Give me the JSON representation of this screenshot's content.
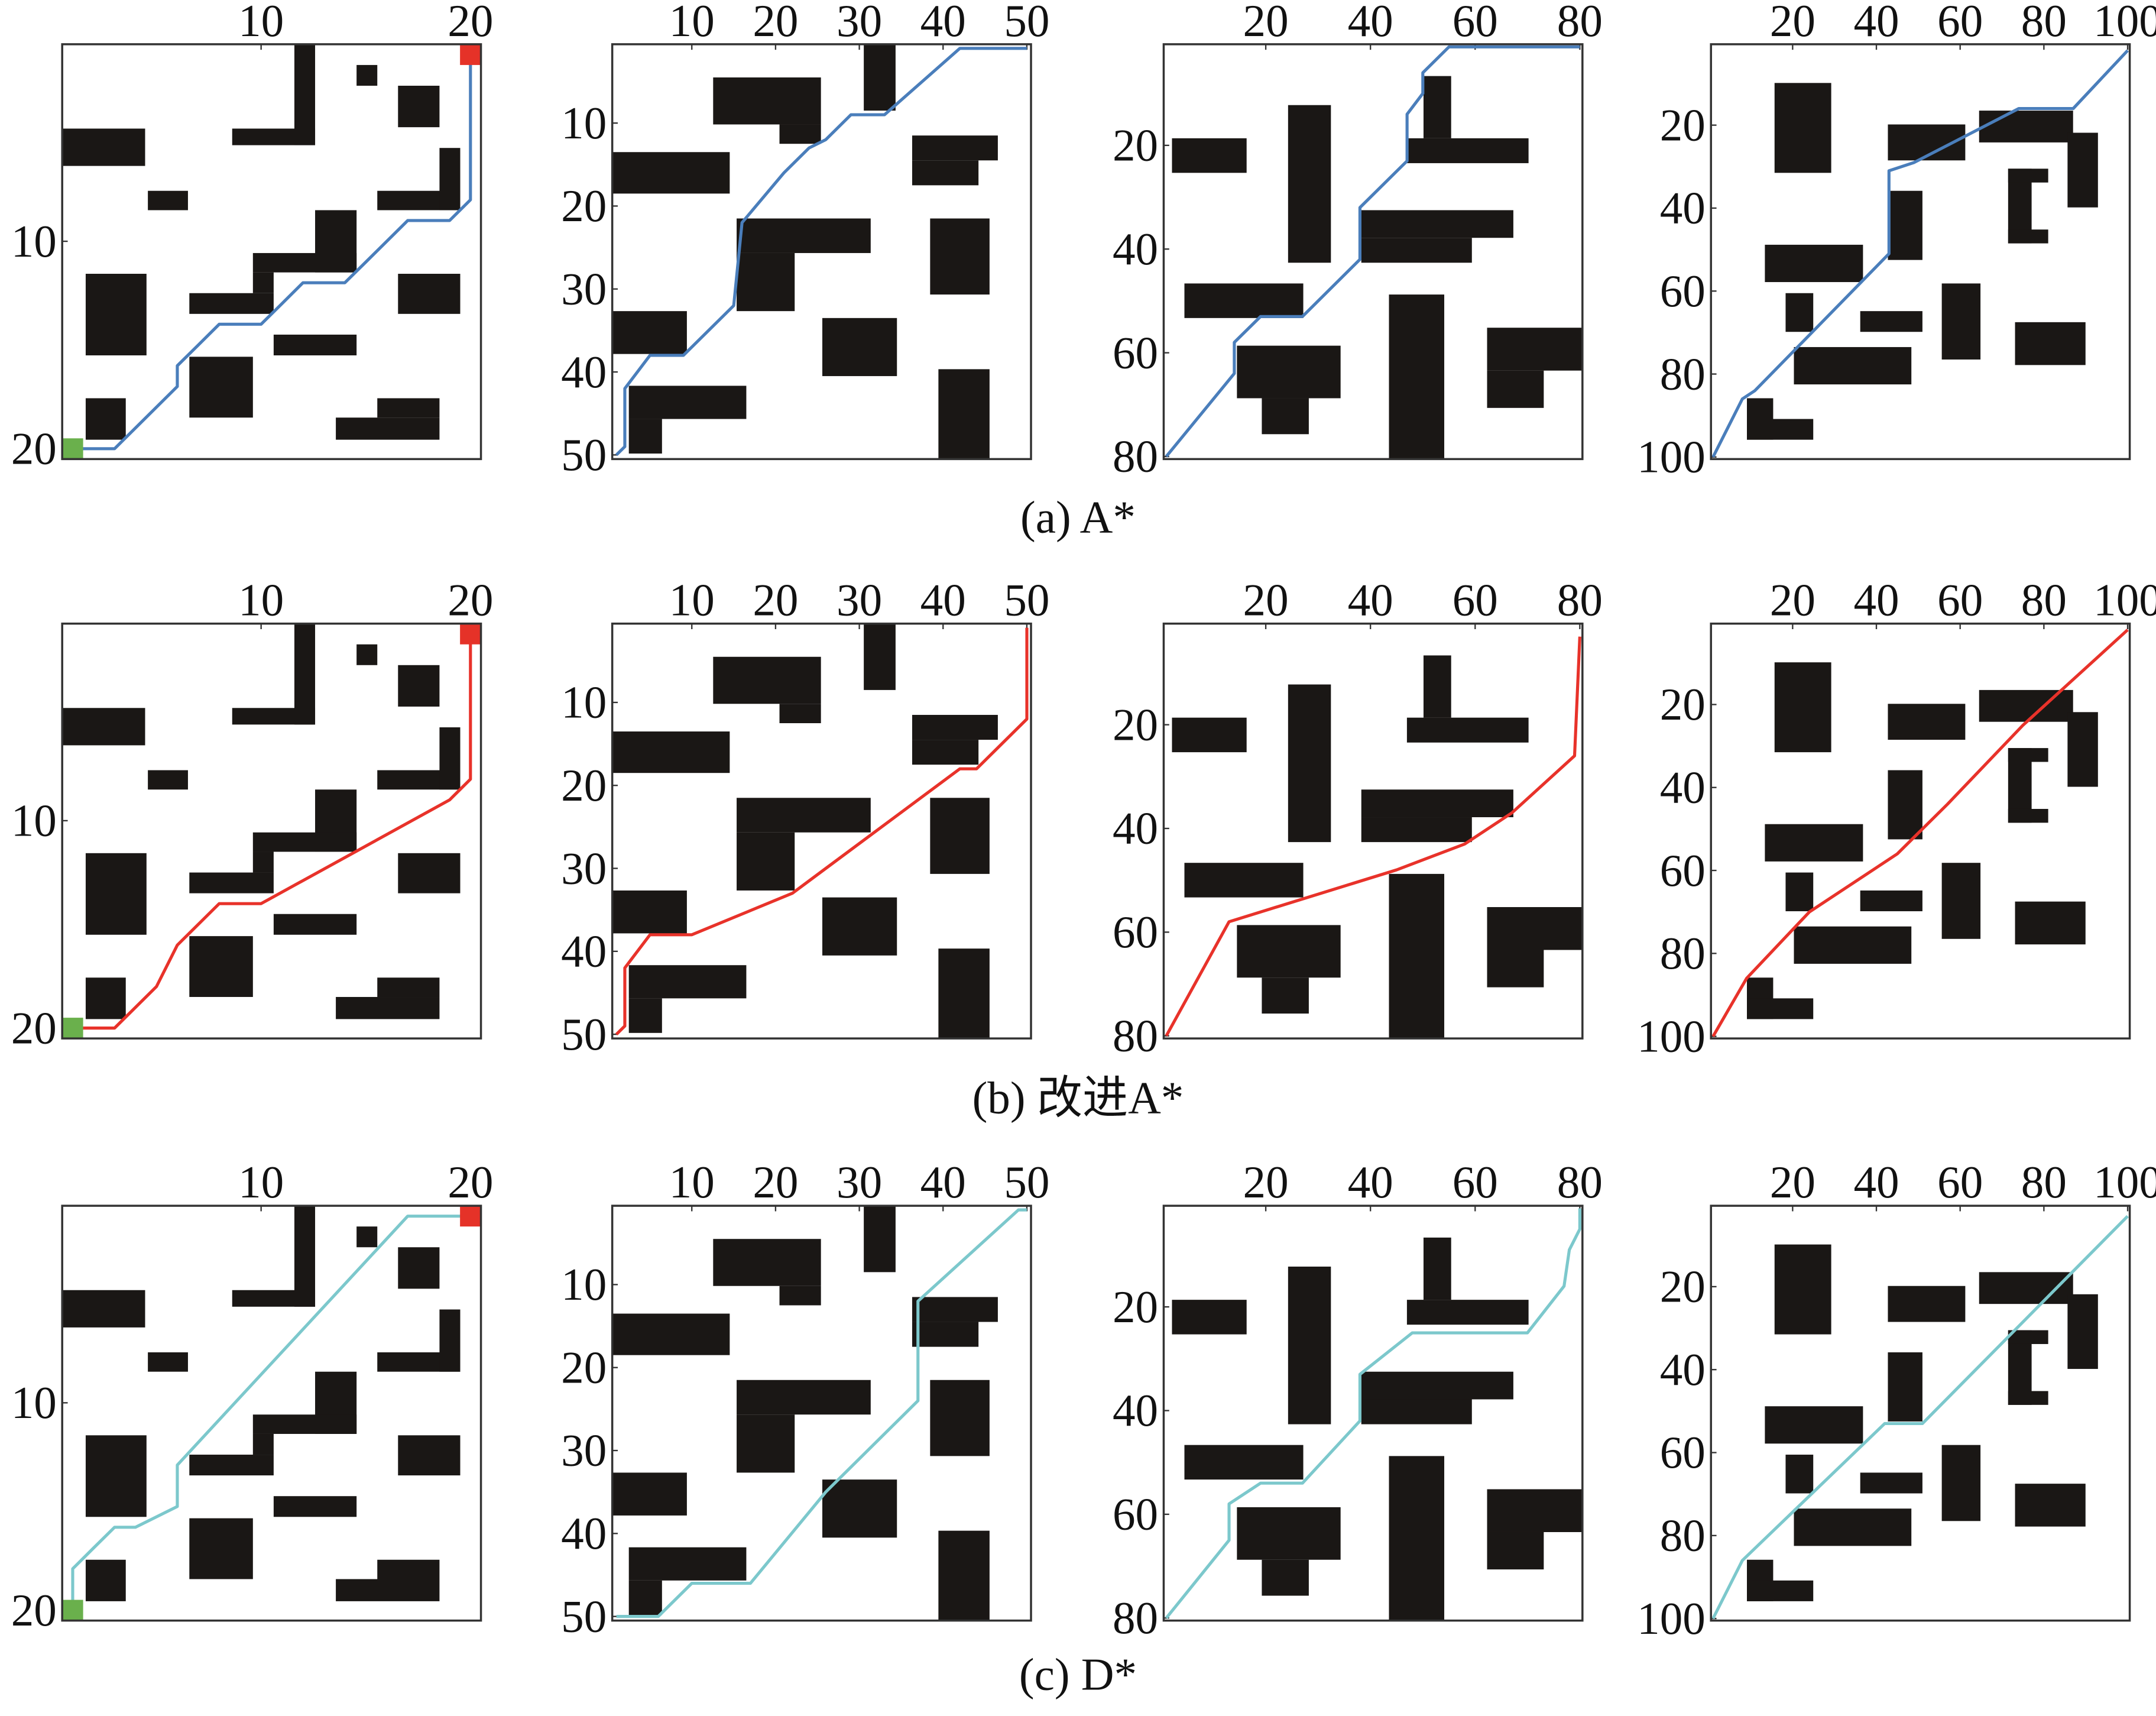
{
  "captions": [
    "(a) A*",
    "(b) 改进A*",
    "(c) D*"
  ],
  "chart_data": [
    {
      "type": "line",
      "xlim": [
        0.5,
        20.5
      ],
      "ylim": [
        0.5,
        20.5
      ],
      "y_inverted": true,
      "xticks": [
        10,
        20
      ],
      "yticks": [
        10,
        20
      ],
      "color": "#4a7ebb",
      "endpoint_markers": true,
      "start_color": "#6ab04c",
      "goal_color": "#e53228",
      "x": [
        1,
        3,
        6,
        6,
        7,
        8,
        10,
        11,
        12,
        14,
        15,
        17,
        19,
        20,
        20
      ],
      "values": [
        20,
        20,
        17,
        16,
        15,
        14,
        14,
        13,
        12,
        12,
        11,
        9,
        9,
        8,
        1
      ]
    },
    {
      "type": "line",
      "xlim": [
        0.5,
        50.5
      ],
      "ylim": [
        0.5,
        50.5
      ],
      "y_inverted": true,
      "xticks": [
        10,
        20,
        30,
        40,
        50
      ],
      "yticks": [
        10,
        20,
        30,
        40,
        50
      ],
      "color": "#4a7ebb",
      "x": [
        1,
        2,
        2,
        5,
        9,
        15,
        16,
        21,
        24,
        26,
        29,
        33,
        42,
        50,
        50
      ],
      "values": [
        50,
        49,
        42,
        38,
        38,
        32,
        22,
        16,
        13,
        12,
        9,
        9,
        1,
        1,
        1
      ]
    },
    {
      "type": "line",
      "xlim": [
        0.5,
        80.5
      ],
      "ylim": [
        0.5,
        80.5
      ],
      "y_inverted": true,
      "xticks": [
        20,
        40,
        60,
        80
      ],
      "yticks": [
        20,
        40,
        60,
        80
      ],
      "color": "#4a7ebb",
      "x": [
        1,
        14,
        14,
        19,
        27,
        38,
        38,
        47,
        47,
        50,
        50,
        55,
        80
      ],
      "values": [
        80,
        64,
        58,
        53,
        53,
        42,
        32,
        23,
        14,
        10,
        6,
        1,
        1
      ]
    },
    {
      "type": "line",
      "xlim": [
        0.5,
        100.5
      ],
      "ylim": [
        0.5,
        100.5
      ],
      "y_inverted": true,
      "xticks": [
        20,
        40,
        60,
        80,
        100
      ],
      "yticks": [
        20,
        40,
        60,
        80,
        100
      ],
      "color": "#4a7ebb",
      "x": [
        1,
        8,
        11,
        43,
        43,
        49,
        74,
        87,
        100
      ],
      "values": [
        100,
        86,
        84,
        51,
        31,
        29,
        16,
        16,
        2
      ]
    },
    {
      "type": "line",
      "xlim": [
        0.5,
        20.5
      ],
      "ylim": [
        0.5,
        20.5
      ],
      "y_inverted": true,
      "xticks": [
        10,
        20
      ],
      "yticks": [
        10,
        20
      ],
      "color": "#e8322a",
      "endpoint_markers": true,
      "start_color": "#6ab04c",
      "goal_color": "#e53228",
      "x": [
        1,
        3,
        5,
        6,
        8,
        10,
        19,
        20,
        20
      ],
      "values": [
        20,
        20,
        18,
        16,
        14,
        14,
        9,
        8,
        1
      ]
    },
    {
      "type": "line",
      "xlim": [
        0.5,
        50.5
      ],
      "ylim": [
        0.5,
        50.5
      ],
      "y_inverted": true,
      "xticks": [
        10,
        20,
        30,
        40,
        50
      ],
      "yticks": [
        10,
        20,
        30,
        40,
        50
      ],
      "color": "#e8322a",
      "x": [
        1,
        2,
        2,
        5,
        10,
        22,
        42,
        44,
        50,
        50
      ],
      "values": [
        50,
        49,
        42,
        38,
        38,
        33,
        18,
        18,
        12,
        1
      ]
    },
    {
      "type": "line",
      "xlim": [
        0.5,
        80.5
      ],
      "ylim": [
        0.5,
        80.5
      ],
      "y_inverted": true,
      "xticks": [
        20,
        40,
        60,
        80
      ],
      "yticks": [
        20,
        40,
        60,
        80
      ],
      "color": "#e8322a",
      "x": [
        1,
        13,
        45,
        58,
        67,
        79,
        80
      ],
      "values": [
        80,
        58,
        48,
        43,
        37,
        26,
        3
      ]
    },
    {
      "type": "line",
      "xlim": [
        0.5,
        100.5
      ],
      "ylim": [
        0.5,
        100.5
      ],
      "y_inverted": true,
      "xticks": [
        20,
        40,
        60,
        80,
        100
      ],
      "yticks": [
        20,
        40,
        60,
        80,
        100
      ],
      "color": "#e8322a",
      "x": [
        1,
        9,
        24,
        45,
        57,
        75,
        100
      ],
      "values": [
        100,
        86,
        70,
        56,
        44,
        25,
        2
      ]
    },
    {
      "type": "line",
      "xlim": [
        0.5,
        20.5
      ],
      "ylim": [
        0.5,
        20.5
      ],
      "y_inverted": true,
      "xticks": [
        10,
        20
      ],
      "yticks": [
        10,
        20
      ],
      "color": "#7cc8cc",
      "endpoint_markers": true,
      "start_color": "#6ab04c",
      "goal_color": "#e53228",
      "x": [
        1,
        1,
        2,
        3,
        4,
        6,
        6,
        17,
        20
      ],
      "values": [
        20,
        18,
        17,
        16,
        16,
        15,
        13,
        1,
        1
      ]
    },
    {
      "type": "line",
      "xlim": [
        0.5,
        50.5
      ],
      "ylim": [
        0.5,
        50.5
      ],
      "y_inverted": true,
      "xticks": [
        10,
        20,
        30,
        40,
        50
      ],
      "yticks": [
        10,
        20,
        30,
        40,
        50
      ],
      "color": "#7cc8cc",
      "x": [
        1,
        6,
        10,
        17,
        26,
        37,
        37,
        49,
        50
      ],
      "values": [
        50,
        50,
        46,
        46,
        35,
        24,
        12,
        1,
        1
      ]
    },
    {
      "type": "line",
      "xlim": [
        0.5,
        80.5
      ],
      "ylim": [
        0.5,
        80.5
      ],
      "y_inverted": true,
      "xticks": [
        20,
        40,
        60,
        80
      ],
      "yticks": [
        20,
        40,
        60,
        80
      ],
      "color": "#7cc8cc",
      "x": [
        1,
        13,
        13,
        19,
        27,
        38,
        38,
        48,
        70,
        77,
        78,
        80,
        80
      ],
      "values": [
        80,
        65,
        58,
        54,
        54,
        42,
        33,
        25,
        25,
        16,
        9,
        5,
        1
      ]
    },
    {
      "type": "line",
      "xlim": [
        0.5,
        100.5
      ],
      "ylim": [
        0.5,
        100.5
      ],
      "y_inverted": true,
      "xticks": [
        20,
        40,
        60,
        80,
        100
      ],
      "yticks": [
        20,
        40,
        60,
        80,
        100
      ],
      "color": "#7cc8cc",
      "x": [
        1,
        8,
        42,
        51,
        100
      ],
      "values": [
        100,
        86,
        53,
        53,
        3
      ]
    }
  ]
}
